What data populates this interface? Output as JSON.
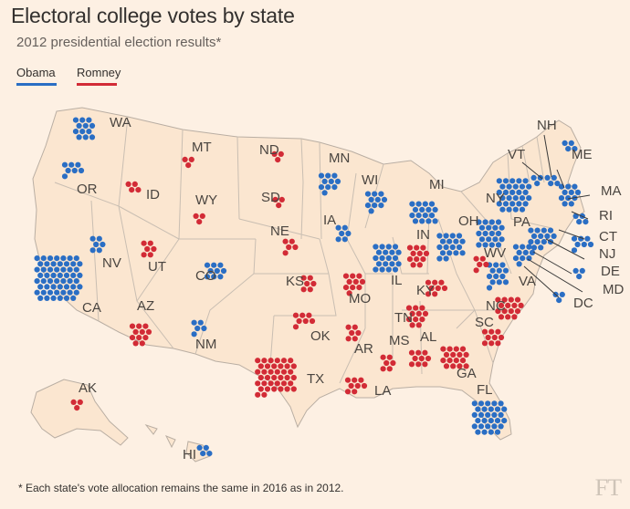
{
  "title": "Electoral college votes by state",
  "subtitle": "2012 presidential election results*",
  "legend": {
    "obama": "Obama",
    "romney": "Romney"
  },
  "colors": {
    "obama": "#2a6ec4",
    "romney": "#d22b36",
    "land": "#fbe6d0",
    "border": "#b9aea3",
    "background": "#fdf0e3"
  },
  "footnote": "* Each state's vote allocation remains the same in 2016 as in 2012.",
  "logo": "FT",
  "states": [
    {
      "abbr": "WA",
      "votes": 12,
      "winner": "obama"
    },
    {
      "abbr": "OR",
      "votes": 7,
      "winner": "obama"
    },
    {
      "abbr": "CA",
      "votes": 55,
      "winner": "obama"
    },
    {
      "abbr": "NV",
      "votes": 6,
      "winner": "obama"
    },
    {
      "abbr": "ID",
      "votes": 4,
      "winner": "romney"
    },
    {
      "abbr": "MT",
      "votes": 3,
      "winner": "romney"
    },
    {
      "abbr": "WY",
      "votes": 3,
      "winner": "romney"
    },
    {
      "abbr": "UT",
      "votes": 6,
      "winner": "romney"
    },
    {
      "abbr": "AZ",
      "votes": 11,
      "winner": "romney"
    },
    {
      "abbr": "CO",
      "votes": 9,
      "winner": "obama"
    },
    {
      "abbr": "NM",
      "votes": 5,
      "winner": "obama"
    },
    {
      "abbr": "ND",
      "votes": 3,
      "winner": "romney"
    },
    {
      "abbr": "SD",
      "votes": 3,
      "winner": "romney"
    },
    {
      "abbr": "NE",
      "votes": 5,
      "winner": "romney"
    },
    {
      "abbr": "KS",
      "votes": 6,
      "winner": "romney"
    },
    {
      "abbr": "OK",
      "votes": 7,
      "winner": "romney"
    },
    {
      "abbr": "TX",
      "votes": 38,
      "winner": "romney"
    },
    {
      "abbr": "MN",
      "votes": 10,
      "winner": "obama"
    },
    {
      "abbr": "IA",
      "votes": 6,
      "winner": "obama"
    },
    {
      "abbr": "MO",
      "votes": 10,
      "winner": "romney"
    },
    {
      "abbr": "AR",
      "votes": 6,
      "winner": "romney"
    },
    {
      "abbr": "LA",
      "votes": 8,
      "winner": "romney"
    },
    {
      "abbr": "WI",
      "votes": 10,
      "winner": "obama"
    },
    {
      "abbr": "IL",
      "votes": 20,
      "winner": "obama"
    },
    {
      "abbr": "MI",
      "votes": 16,
      "winner": "obama"
    },
    {
      "abbr": "IN",
      "votes": 11,
      "winner": "romney"
    },
    {
      "abbr": "OH",
      "votes": 18,
      "winner": "obama"
    },
    {
      "abbr": "KY",
      "votes": 8,
      "winner": "romney"
    },
    {
      "abbr": "TN",
      "votes": 11,
      "winner": "romney"
    },
    {
      "abbr": "MS",
      "votes": 6,
      "winner": "romney"
    },
    {
      "abbr": "AL",
      "votes": 9,
      "winner": "romney"
    },
    {
      "abbr": "GA",
      "votes": 16,
      "winner": "romney"
    },
    {
      "abbr": "FL",
      "votes": 29,
      "winner": "obama"
    },
    {
      "abbr": "SC",
      "votes": 9,
      "winner": "romney"
    },
    {
      "abbr": "NC",
      "votes": 15,
      "winner": "romney"
    },
    {
      "abbr": "VA",
      "votes": 13,
      "winner": "obama"
    },
    {
      "abbr": "WV",
      "votes": 5,
      "winner": "romney"
    },
    {
      "abbr": "PA",
      "votes": 20,
      "winner": "obama"
    },
    {
      "abbr": "NY",
      "votes": 29,
      "winner": "obama"
    },
    {
      "abbr": "VT",
      "votes": 3,
      "winner": "obama"
    },
    {
      "abbr": "NH",
      "votes": 4,
      "winner": "obama"
    },
    {
      "abbr": "ME",
      "votes": 4,
      "winner": "obama"
    },
    {
      "abbr": "MA",
      "votes": 11,
      "winner": "obama"
    },
    {
      "abbr": "RI",
      "votes": 4,
      "winner": "obama"
    },
    {
      "abbr": "CT",
      "votes": 7,
      "winner": "obama"
    },
    {
      "abbr": "NJ",
      "votes": 14,
      "winner": "obama"
    },
    {
      "abbr": "DE",
      "votes": 3,
      "winner": "obama"
    },
    {
      "abbr": "MD",
      "votes": 10,
      "winner": "obama"
    },
    {
      "abbr": "DC",
      "votes": 3,
      "winner": "obama"
    },
    {
      "abbr": "AK",
      "votes": 3,
      "winner": "romney"
    },
    {
      "abbr": "HI",
      "votes": 4,
      "winner": "obama"
    }
  ]
}
